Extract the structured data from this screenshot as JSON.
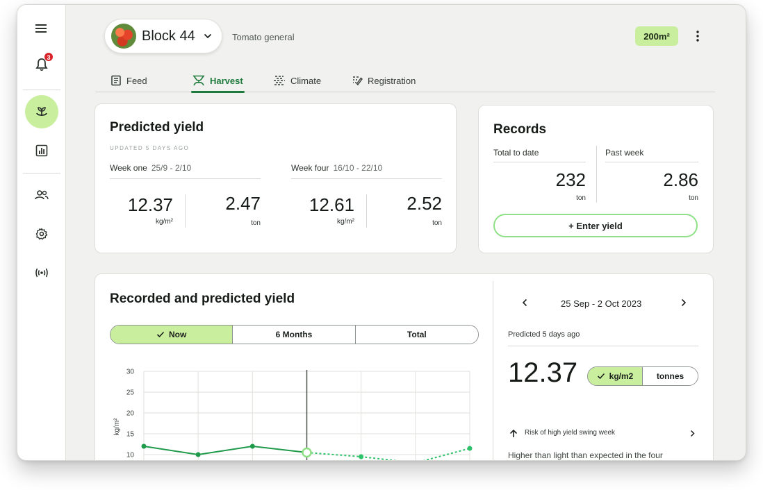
{
  "sidebar": {
    "notification_count": "3",
    "icons": [
      "menu-icon",
      "bell-icon",
      "plant-icon",
      "bar-chart-icon",
      "users-icon",
      "gear-icon",
      "signal-icon"
    ]
  },
  "header": {
    "block_name": "Block 44",
    "subtitle": "Tomato general",
    "area": "200m²"
  },
  "tabs": [
    {
      "label": "Feed"
    },
    {
      "label": "Harvest"
    },
    {
      "label": "Climate"
    },
    {
      "label": "Registration"
    }
  ],
  "predicted_yield": {
    "title": "Predicted yield",
    "updated": "UPDATED 5 DAYS AGO",
    "week_one": {
      "label": "Week one",
      "dates": "25/9 - 2/10",
      "value_a": "12.37",
      "unit_a": "kg/m²",
      "value_b": "2.47",
      "unit_b": "ton"
    },
    "week_four": {
      "label": "Week four",
      "dates": "16/10 - 22/10",
      "value_a": "12.61",
      "unit_a": "kg/m²",
      "value_b": "2.52",
      "unit_b": "ton"
    }
  },
  "records": {
    "title": "Records",
    "total_label": "Total to date",
    "total_value": "232",
    "total_unit": "ton",
    "past_label": "Past week",
    "past_value": "2.86",
    "past_unit": "ton",
    "enter_button": "+ Enter yield"
  },
  "yield_chart": {
    "title": "Recorded and predicted yield",
    "ranges": [
      "Now",
      "6 Months",
      "Total"
    ],
    "selected_range": "Now"
  },
  "chart_data": {
    "type": "line",
    "title": "Recorded and predicted yield",
    "ylabel": "kg/m²",
    "xlabel": "",
    "ylim": [
      0,
      30
    ],
    "yticks": [
      "30",
      "25",
      "20",
      "15",
      "10"
    ],
    "grid": true,
    "series": [
      {
        "kind": "recorded",
        "values": [
          12,
          10,
          12,
          10.5
        ],
        "color": "#1e9a4a"
      },
      {
        "kind": "predicted",
        "values": [
          10.5,
          9.5,
          8,
          11.5
        ],
        "color": "#2ec26a"
      }
    ],
    "recorded_x": [
      0,
      1,
      2,
      3
    ],
    "predicted_x": [
      3,
      4,
      5,
      6
    ],
    "highlight_index": 3
  },
  "week_detail": {
    "range": "25 Sep - 2 Oct 2023",
    "predicted_note": "Predicted 5 days ago",
    "value": "12.37",
    "unit_options": [
      "kg/m2",
      "tonnes"
    ],
    "selected_unit": "kg/m2",
    "risk_label": "Risk of high yield swing week",
    "risk_text": "Higher than light than expected in the four"
  },
  "colors": {
    "accent": "#c9ef9e",
    "brand_green": "#1e7a3c",
    "badge": "#d8232a"
  }
}
